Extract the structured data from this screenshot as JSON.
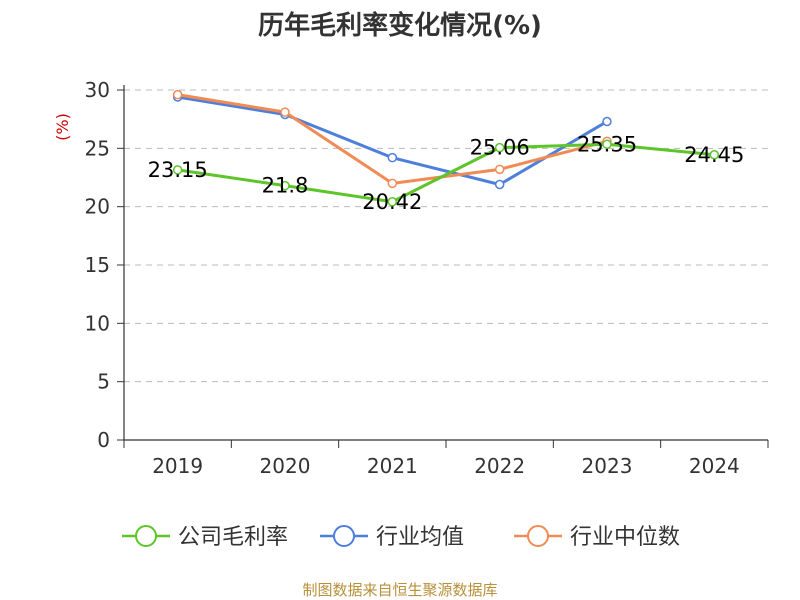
{
  "chart_data": {
    "type": "line",
    "title": "历年毛利率变化情况(%)",
    "ylabel": "(%)",
    "categories": [
      "2019",
      "2020",
      "2021",
      "2022",
      "2023",
      "2024"
    ],
    "ylim": [
      0,
      30
    ],
    "yticks": [
      "0",
      "5",
      "10",
      "15",
      "20",
      "25",
      "30"
    ],
    "grid": true,
    "legend_position": "bottom",
    "series": [
      {
        "name": "公司毛利率",
        "color": "#5dc42a",
        "values": [
          23.15,
          21.8,
          20.42,
          25.06,
          25.35,
          24.45
        ],
        "labels": [
          "23.15",
          "21.8",
          "20.42",
          "25.06",
          "25.35",
          "24.45"
        ]
      },
      {
        "name": "行业均值",
        "color": "#4d7fdb",
        "values": [
          29.4,
          27.9,
          24.2,
          21.9,
          27.3,
          null
        ]
      },
      {
        "name": "行业中位数",
        "color": "#f08b55",
        "values": [
          29.6,
          28.1,
          22.0,
          23.2,
          25.6,
          null
        ]
      }
    ],
    "unit_color": "#cc0000"
  },
  "source": {
    "text": "制图数据来自恒生聚源数据库",
    "color": "#b8903a"
  }
}
